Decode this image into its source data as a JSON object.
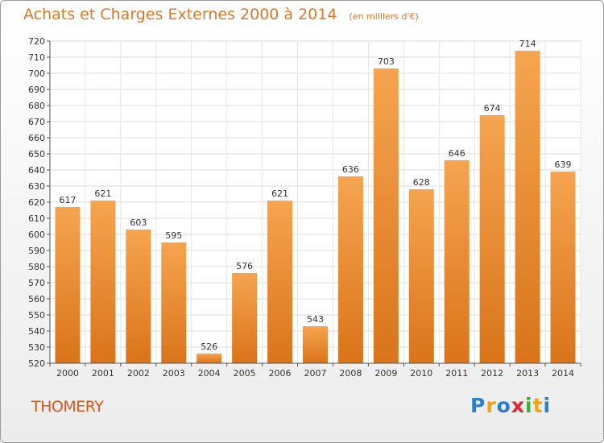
{
  "chart_data": {
    "type": "bar",
    "title": "Achats et Charges Externes 2000 à 2014",
    "subtitle": "(en milliers d'€)",
    "categories": [
      "2000",
      "2001",
      "2002",
      "2003",
      "2004",
      "2005",
      "2006",
      "2007",
      "2008",
      "2009",
      "2010",
      "2011",
      "2012",
      "2013",
      "2014"
    ],
    "values": [
      617,
      621,
      603,
      595,
      526,
      576,
      621,
      543,
      636,
      703,
      628,
      646,
      674,
      714,
      639
    ],
    "ylim": [
      520,
      720
    ],
    "yticks": [
      520,
      530,
      540,
      550,
      560,
      570,
      580,
      590,
      600,
      610,
      620,
      630,
      640,
      650,
      660,
      670,
      680,
      690,
      700,
      710,
      720
    ],
    "grid": true,
    "bar_color_top": "#f6a450",
    "bar_color_bottom": "#d9741a"
  },
  "place": "THOMERY",
  "brand": {
    "letters": [
      "P",
      "r",
      "o",
      "x",
      "i",
      "t",
      "i"
    ],
    "colors": [
      "#2f7fc8",
      "#f1a215",
      "#2f7fc8",
      "#e2262b",
      "#3fae3f",
      "#f1a215",
      "#2f7fc8"
    ]
  }
}
